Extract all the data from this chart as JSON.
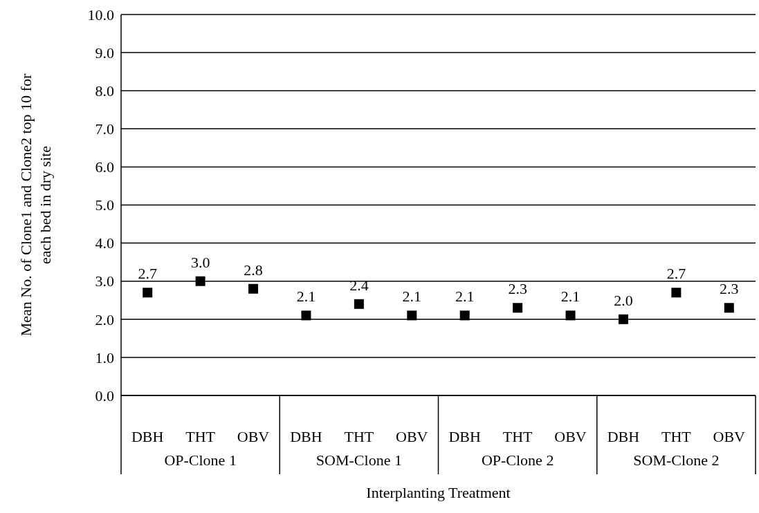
{
  "chart_data": {
    "type": "scatter",
    "xlabel": "Interplanting Treatment",
    "ylabel": "Mean No. of Clone1 and Clone2 top 10 for each bed in dry site",
    "categories": [
      "DBH",
      "THT",
      "OBV",
      "DBH",
      "THT",
      "OBV",
      "DBH",
      "THT",
      "OBV",
      "DBH",
      "THT",
      "OBV"
    ],
    "series": [
      {
        "color": "#000000",
        "values": [
          2.7,
          3.0,
          2.8,
          2.1,
          2.4,
          2.1,
          2.1,
          2.3,
          2.1,
          2.0,
          2.7,
          2.3
        ],
        "value_labels": [
          "2.7",
          "3.0",
          "2.8",
          "2.1",
          "2.4",
          "2.1",
          "2.1",
          "2.3",
          "2.1",
          "2.0",
          "2.7",
          "2.3"
        ]
      }
    ],
    "annotations": [
      "OP-Clone 1",
      "SOM-Clone 1",
      "OP-Clone 2",
      "SOM-Clone 2"
    ],
    "ylim": [
      0,
      10
    ],
    "yticks": [
      {
        "value": 0,
        "label": "0.0"
      },
      {
        "value": 1,
        "label": "1.0"
      },
      {
        "value": 2,
        "label": "2.0"
      },
      {
        "value": 3,
        "label": "3.0"
      },
      {
        "value": 4,
        "label": "4.0"
      },
      {
        "value": 5,
        "label": "5.0"
      },
      {
        "value": 6,
        "label": "6.0"
      },
      {
        "value": 7,
        "label": "7.0"
      },
      {
        "value": 8,
        "label": "8.0"
      },
      {
        "value": 9,
        "label": "9.0"
      },
      {
        "value": 10,
        "label": "10.0"
      }
    ],
    "grid": "y",
    "marker": "square"
  }
}
